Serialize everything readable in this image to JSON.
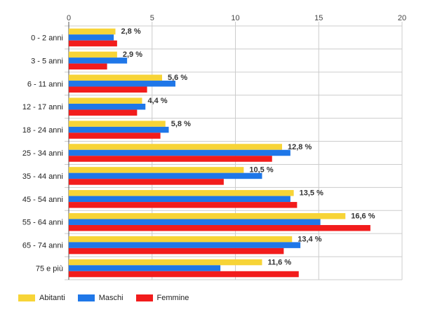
{
  "chart_data": {
    "type": "bar",
    "orientation": "horizontal",
    "categories": [
      "0 - 2 anni",
      "3 - 5 anni",
      "6 - 11 anni",
      "12 - 17 anni",
      "18 - 24 anni",
      "25 - 34 anni",
      "35 - 44 anni",
      "45 - 54 anni",
      "55 - 64 anni",
      "65 - 74 anni",
      "75 e più"
    ],
    "series": [
      {
        "name": "Abitanti",
        "color": "#f7d437",
        "values": [
          2.8,
          2.9,
          5.6,
          4.4,
          5.8,
          12.8,
          10.5,
          13.5,
          16.6,
          13.4,
          11.6
        ]
      },
      {
        "name": "Maschi",
        "color": "#1f77e8",
        "values": [
          2.7,
          3.5,
          6.4,
          4.6,
          6.0,
          13.3,
          11.6,
          13.3,
          15.1,
          13.9,
          9.1
        ]
      },
      {
        "name": "Femmine",
        "color": "#f21c1c",
        "values": [
          2.9,
          2.3,
          4.7,
          4.1,
          5.5,
          12.2,
          9.3,
          13.7,
          18.1,
          12.9,
          13.8
        ]
      }
    ],
    "data_labels": [
      "2,8 %",
      "2,9 %",
      "5,6 %",
      "4,4 %",
      "5,8 %",
      "12,8 %",
      "10,5 %",
      "13,5 %",
      "16,6 %",
      "13,4 %",
      "11,6 %"
    ],
    "x_ticks": [
      "0",
      "5",
      "10",
      "15",
      "20"
    ],
    "xlim": [
      0,
      20
    ],
    "grid": true,
    "legend_position": "bottom-left",
    "title": "",
    "xlabel": "",
    "ylabel": ""
  }
}
